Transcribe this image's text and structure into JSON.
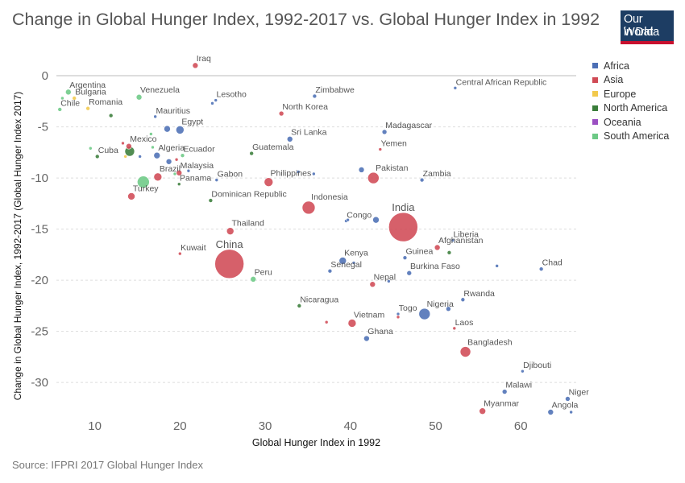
{
  "title": "Change in Global Hunger Index, 1992-2017 vs. Global Hunger Index in 1992",
  "logo": {
    "line1": "Our World",
    "line2": "in Data"
  },
  "source": "Source: IFPRI 2017 Global Hunger Index",
  "chart_data": {
    "type": "scatter",
    "title": "Change in Global Hunger Index, 1992-2017 vs. Global Hunger Index in 1992",
    "xlabel": "Global Hunger Index in 1992",
    "ylabel": "Change in Global Hunger Index, 1992-2017 (Global Hunger Index 2017)",
    "xlim": [
      5.5,
      66.5
    ],
    "ylim": [
      -32.9,
      1.5
    ],
    "xticks": [
      10,
      20,
      30,
      40,
      50,
      60
    ],
    "yticks": [
      0,
      -5,
      -10,
      -15,
      -20,
      -25,
      -30
    ],
    "grid": "horizontal dashed",
    "legend_position": "right",
    "series": [
      {
        "name": "Africa",
        "color": "#4c6fb5"
      },
      {
        "name": "Asia",
        "color": "#d04a55"
      },
      {
        "name": "Europe",
        "color": "#f2c94c"
      },
      {
        "name": "North America",
        "color": "#3a7d3a"
      },
      {
        "name": "Oceania",
        "color": "#9b4fc2"
      },
      {
        "name": "South America",
        "color": "#6cc985"
      }
    ],
    "points": [
      {
        "label": "Iraq",
        "x": 21.8,
        "y": 1.0,
        "group": "Asia",
        "r": 3.5
      },
      {
        "label": "Argentina",
        "x": 6.9,
        "y": -1.6,
        "group": "South America",
        "r": 3.5
      },
      {
        "label": "Bulgaria",
        "x": 7.6,
        "y": -2.2,
        "group": "Europe",
        "r": 2.5
      },
      {
        "label": "Chile",
        "x": 5.9,
        "y": -3.3,
        "group": "South America",
        "r": 2.5
      },
      {
        "label": "Venezuela",
        "x": 15.2,
        "y": -2.1,
        "group": "South America",
        "r": 3.5
      },
      {
        "label": "Romania",
        "x": 9.2,
        "y": -3.2,
        "group": "Europe",
        "r": 2.5
      },
      {
        "label": "Mauritius",
        "x": 17.1,
        "y": -4.0,
        "group": "Africa",
        "r": 2
      },
      {
        "label": "Lesotho",
        "x": 24.2,
        "y": -2.4,
        "group": "Africa",
        "r": 2
      },
      {
        "label": "Zimbabwe",
        "x": 35.8,
        "y": -2.0,
        "group": "Africa",
        "r": 2.5
      },
      {
        "label": "Central African Republic",
        "x": 52.3,
        "y": -1.2,
        "group": "Africa",
        "r": 2
      },
      {
        "label": "North Korea",
        "x": 31.9,
        "y": -3.7,
        "group": "Asia",
        "r": 3
      },
      {
        "label": "Egypt",
        "x": 20.0,
        "y": -5.3,
        "group": "Africa",
        "r": 5
      },
      {
        "label": "Sri Lanka",
        "x": 32.9,
        "y": -6.2,
        "group": "Africa",
        "r": 3.5
      },
      {
        "label": "Madagascar",
        "x": 44.0,
        "y": -5.5,
        "group": "Africa",
        "r": 3
      },
      {
        "label": "Yemen",
        "x": 43.5,
        "y": -7.2,
        "group": "Asia",
        "r": 2
      },
      {
        "label": "Mexico",
        "x": 14.0,
        "y": -6.9,
        "group": "Asia",
        "r": 3.5
      },
      {
        "label": "Cuba",
        "x": 10.3,
        "y": -7.9,
        "group": "North America",
        "r": 2.5
      },
      {
        "label": "Algeria",
        "x": 17.3,
        "y": -7.8,
        "group": "Africa",
        "r": 4
      },
      {
        "label": "Ecuador",
        "x": 20.3,
        "y": -7.8,
        "group": "South America",
        "r": 2.5
      },
      {
        "label": "Guatemala",
        "x": 28.4,
        "y": -7.6,
        "group": "North America",
        "r": 2.5
      },
      {
        "label": "Brazil",
        "x": 17.4,
        "y": -9.9,
        "group": "Asia",
        "r": 5
      },
      {
        "label": "Malaysia",
        "x": 19.9,
        "y": -9.5,
        "group": "Asia",
        "r": 3.5
      },
      {
        "label": "Panama",
        "x": 19.9,
        "y": -10.6,
        "group": "North America",
        "r": 2
      },
      {
        "label": "Gabon",
        "x": 24.3,
        "y": -10.2,
        "group": "Africa",
        "r": 2
      },
      {
        "label": "Philippines",
        "x": 30.4,
        "y": -10.4,
        "group": "Asia",
        "r": 5.5
      },
      {
        "label": "Pakistan",
        "x": 42.7,
        "y": -10.0,
        "group": "Asia",
        "r": 7
      },
      {
        "label": "Zambia",
        "x": 48.4,
        "y": -10.2,
        "group": "Africa",
        "r": 2.5
      },
      {
        "label": "Turkey",
        "x": 14.3,
        "y": -11.8,
        "group": "Asia",
        "r": 4.5
      },
      {
        "label": "Dominican Republic",
        "x": 23.6,
        "y": -12.2,
        "group": "North America",
        "r": 2.5
      },
      {
        "label": "Indonesia",
        "x": 35.1,
        "y": -12.9,
        "group": "Asia",
        "r": 8
      },
      {
        "label": "Congo",
        "x": 39.5,
        "y": -14.2,
        "group": "Africa",
        "r": 2
      },
      {
        "label": "India",
        "x": 46.2,
        "y": -14.8,
        "group": "Asia",
        "r": 18
      },
      {
        "label": "Thailand",
        "x": 25.9,
        "y": -15.2,
        "group": "Asia",
        "r": 4.5
      },
      {
        "label": "Liberia",
        "x": 52.0,
        "y": -16.1,
        "group": "Africa",
        "r": 2
      },
      {
        "label": "Afghanistan",
        "x": 50.2,
        "y": -16.8,
        "group": "Asia",
        "r": 3.5
      },
      {
        "label": "Kuwait",
        "x": 20.0,
        "y": -17.4,
        "group": "Asia",
        "r": 2
      },
      {
        "label": "China",
        "x": 25.8,
        "y": -18.4,
        "group": "Asia",
        "r": 18
      },
      {
        "label": "Kenya",
        "x": 39.1,
        "y": -18.1,
        "group": "Africa",
        "r": 4.5
      },
      {
        "label": "Guinea",
        "x": 46.4,
        "y": -17.8,
        "group": "Africa",
        "r": 2.5
      },
      {
        "label": "Chad",
        "x": 62.4,
        "y": -18.9,
        "group": "Africa",
        "r": 2.5
      },
      {
        "label": "Senegal",
        "x": 37.6,
        "y": -19.1,
        "group": "Africa",
        "r": 2.5
      },
      {
        "label": "Burkina Faso",
        "x": 46.9,
        "y": -19.3,
        "group": "Africa",
        "r": 3
      },
      {
        "label": "Peru",
        "x": 28.6,
        "y": -19.9,
        "group": "South America",
        "r": 3.5
      },
      {
        "label": "Nepal",
        "x": 42.6,
        "y": -20.4,
        "group": "Asia",
        "r": 3.5
      },
      {
        "label": "Rwanda",
        "x": 53.2,
        "y": -21.9,
        "group": "Africa",
        "r": 2.5
      },
      {
        "label": "Nicaragua",
        "x": 34.0,
        "y": -22.5,
        "group": "North America",
        "r": 2.5
      },
      {
        "label": "Togo",
        "x": 45.6,
        "y": -23.3,
        "group": "Africa",
        "r": 2
      },
      {
        "label": "Nigeria",
        "x": 48.7,
        "y": -23.3,
        "group": "Africa",
        "r": 7
      },
      {
        "label": "Vietnam",
        "x": 40.2,
        "y": -24.2,
        "group": "Asia",
        "r": 5
      },
      {
        "label": "Laos",
        "x": 52.2,
        "y": -24.7,
        "group": "Asia",
        "r": 2
      },
      {
        "label": "Ghana",
        "x": 41.9,
        "y": -25.7,
        "group": "Africa",
        "r": 3.5
      },
      {
        "label": "Bangladesh",
        "x": 53.5,
        "y": -27.0,
        "group": "Asia",
        "r": 6.5
      },
      {
        "label": "Djibouti",
        "x": 60.2,
        "y": -28.9,
        "group": "Africa",
        "r": 2
      },
      {
        "label": "Malawi",
        "x": 58.1,
        "y": -30.9,
        "group": "Africa",
        "r": 3
      },
      {
        "label": "Niger",
        "x": 65.5,
        "y": -31.6,
        "group": "Africa",
        "r": 3
      },
      {
        "label": "Myanmar",
        "x": 55.5,
        "y": -32.8,
        "group": "Asia",
        "r": 4
      },
      {
        "label": "Angola",
        "x": 63.5,
        "y": -32.9,
        "group": "Africa",
        "r": 3.5
      },
      {
        "label": "",
        "x": 6.2,
        "y": -2.2,
        "group": "South America",
        "r": 2
      },
      {
        "label": "",
        "x": 11.9,
        "y": -3.9,
        "group": "North America",
        "r": 2.5
      },
      {
        "label": "",
        "x": 9.5,
        "y": -7.1,
        "group": "South America",
        "r": 2
      },
      {
        "label": "",
        "x": 13.3,
        "y": -6.6,
        "group": "Asia",
        "r": 2
      },
      {
        "label": "",
        "x": 13.6,
        "y": -7.9,
        "group": "Europe",
        "r": 2
      },
      {
        "label": "",
        "x": 14.1,
        "y": -7.4,
        "group": "North America",
        "r": 6
      },
      {
        "label": "",
        "x": 15.3,
        "y": -7.9,
        "group": "Africa",
        "r": 2
      },
      {
        "label": "",
        "x": 15.7,
        "y": -10.4,
        "group": "South America",
        "r": 7.5
      },
      {
        "label": "",
        "x": 16.6,
        "y": -5.7,
        "group": "South America",
        "r": 2
      },
      {
        "label": "",
        "x": 16.8,
        "y": -7.0,
        "group": "South America",
        "r": 2
      },
      {
        "label": "",
        "x": 18.5,
        "y": -5.2,
        "group": "Africa",
        "r": 4
      },
      {
        "label": "",
        "x": 18.7,
        "y": -8.4,
        "group": "Africa",
        "r": 3.5
      },
      {
        "label": "",
        "x": 19.4,
        "y": -9.6,
        "group": "South America",
        "r": 2
      },
      {
        "label": "",
        "x": 19.6,
        "y": -8.2,
        "group": "Asia",
        "r": 2
      },
      {
        "label": "",
        "x": 21.0,
        "y": -9.3,
        "group": "Africa",
        "r": 2
      },
      {
        "label": "",
        "x": 23.8,
        "y": -2.7,
        "group": "Africa",
        "r": 2
      },
      {
        "label": "",
        "x": 33.9,
        "y": -9.4,
        "group": "Africa",
        "r": 2
      },
      {
        "label": "",
        "x": 35.7,
        "y": -9.6,
        "group": "Africa",
        "r": 2
      },
      {
        "label": "",
        "x": 39.7,
        "y": -14.1,
        "group": "Africa",
        "r": 2
      },
      {
        "label": "",
        "x": 40.4,
        "y": -18.3,
        "group": "Africa",
        "r": 2
      },
      {
        "label": "",
        "x": 41.3,
        "y": -9.2,
        "group": "Africa",
        "r": 3.5
      },
      {
        "label": "",
        "x": 43.0,
        "y": -14.1,
        "group": "Africa",
        "r": 4
      },
      {
        "label": "",
        "x": 44.5,
        "y": -20.1,
        "group": "Africa",
        "r": 2
      },
      {
        "label": "",
        "x": 51.5,
        "y": -22.8,
        "group": "Africa",
        "r": 3
      },
      {
        "label": "",
        "x": 51.6,
        "y": -17.3,
        "group": "North America",
        "r": 2.5
      },
      {
        "label": "",
        "x": 57.2,
        "y": -18.6,
        "group": "Africa",
        "r": 2
      },
      {
        "label": "",
        "x": 37.2,
        "y": -24.1,
        "group": "Asia",
        "r": 2
      },
      {
        "label": "",
        "x": 45.6,
        "y": -23.6,
        "group": "Asia",
        "r": 2
      },
      {
        "label": "",
        "x": 65.9,
        "y": -32.9,
        "group": "Africa",
        "r": 2
      }
    ]
  }
}
